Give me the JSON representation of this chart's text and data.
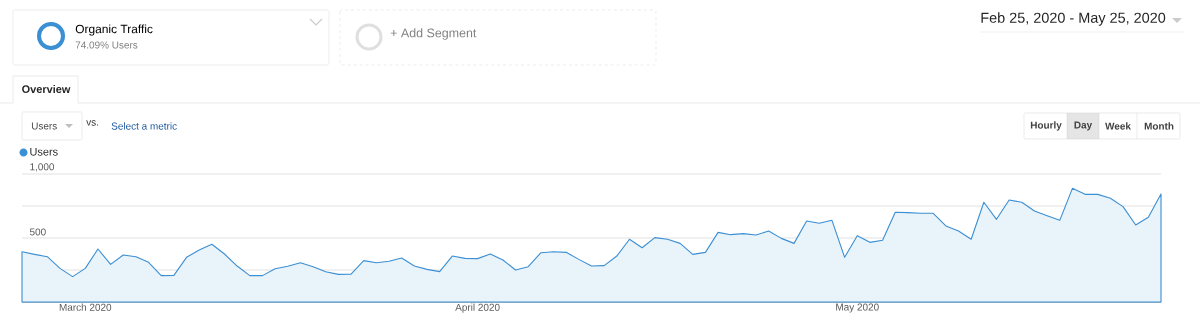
{
  "chart_data": {
    "type": "area",
    "annotations": [
      "Organic Traffic",
      "74.09% Users",
      "+ Add Segment",
      "Feb 25, 2020 - May 25, 2020",
      "Overview",
      "Users",
      "vs.",
      "Select a metric",
      "Hourly",
      "Day",
      "Week",
      "Month"
    ],
    "x": [
      "2020-02-25",
      "2020-02-26",
      "2020-02-27",
      "2020-02-28",
      "2020-02-29",
      "2020-03-01",
      "2020-03-02",
      "2020-03-03",
      "2020-03-04",
      "2020-03-05",
      "2020-03-06",
      "2020-03-07",
      "2020-03-08",
      "2020-03-09",
      "2020-03-10",
      "2020-03-11",
      "2020-03-12",
      "2020-03-13",
      "2020-03-14",
      "2020-03-15",
      "2020-03-16",
      "2020-03-17",
      "2020-03-18",
      "2020-03-19",
      "2020-03-20",
      "2020-03-21",
      "2020-03-22",
      "2020-03-23",
      "2020-03-24",
      "2020-03-25",
      "2020-03-26",
      "2020-03-27",
      "2020-03-28",
      "2020-03-29",
      "2020-03-30",
      "2020-03-31",
      "2020-04-01",
      "2020-04-02",
      "2020-04-03",
      "2020-04-04",
      "2020-04-05",
      "2020-04-06",
      "2020-04-07",
      "2020-04-08",
      "2020-04-09",
      "2020-04-10",
      "2020-04-11",
      "2020-04-12",
      "2020-04-13",
      "2020-04-14",
      "2020-04-15",
      "2020-04-16",
      "2020-04-17",
      "2020-04-18",
      "2020-04-19",
      "2020-04-20",
      "2020-04-21",
      "2020-04-22",
      "2020-04-23",
      "2020-04-24",
      "2020-04-25",
      "2020-04-26",
      "2020-04-27",
      "2020-04-28",
      "2020-04-29",
      "2020-04-30",
      "2020-05-01",
      "2020-05-02",
      "2020-05-03",
      "2020-05-04",
      "2020-05-05",
      "2020-05-06",
      "2020-05-07",
      "2020-05-08",
      "2020-05-09",
      "2020-05-10",
      "2020-05-11",
      "2020-05-12",
      "2020-05-13",
      "2020-05-14",
      "2020-05-15",
      "2020-05-16",
      "2020-05-17",
      "2020-05-18",
      "2020-05-19",
      "2020-05-20",
      "2020-05-21",
      "2020-05-22",
      "2020-05-23",
      "2020-05-24",
      "2020-05-25"
    ],
    "series": [
      {
        "name": "Users",
        "color": "#3b8fd3",
        "values": [
          393,
          372,
          354,
          263,
          198,
          263,
          414,
          294,
          367,
          354,
          310,
          206,
          208,
          349,
          406,
          451,
          375,
          281,
          206,
          206,
          260,
          279,
          307,
          276,
          237,
          216,
          218,
          323,
          307,
          318,
          344,
          281,
          255,
          237,
          359,
          341,
          339,
          375,
          328,
          250,
          276,
          385,
          393,
          388,
          333,
          281,
          284,
          359,
          490,
          424,
          503,
          490,
          458,
          372,
          388,
          544,
          526,
          534,
          523,
          555,
          497,
          458,
          633,
          615,
          638,
          349,
          518,
          466,
          482,
          701,
          698,
          693,
          693,
          594,
          555,
          490,
          779,
          646,
          797,
          779,
          711,
          674,
          638,
          888,
          841,
          841,
          810,
          745,
          602,
          662,
          844
        ]
      }
    ],
    "xlim": [
      "2020-02-25",
      "2020-05-25"
    ],
    "xticks": [
      {
        "value": "2020-03-01",
        "label": "March 2020"
      },
      {
        "value": "2020-04-01",
        "label": "April 2020"
      },
      {
        "value": "2020-05-01",
        "label": "May 2020"
      }
    ],
    "ylim": [
      0,
      1000
    ],
    "yticks": [
      {
        "value": 250,
        "label": null
      },
      500,
      {
        "value": 750,
        "label": null
      },
      {
        "value": 1000,
        "label": "1,000"
      }
    ],
    "grid": "y",
    "legend": "top left"
  }
}
